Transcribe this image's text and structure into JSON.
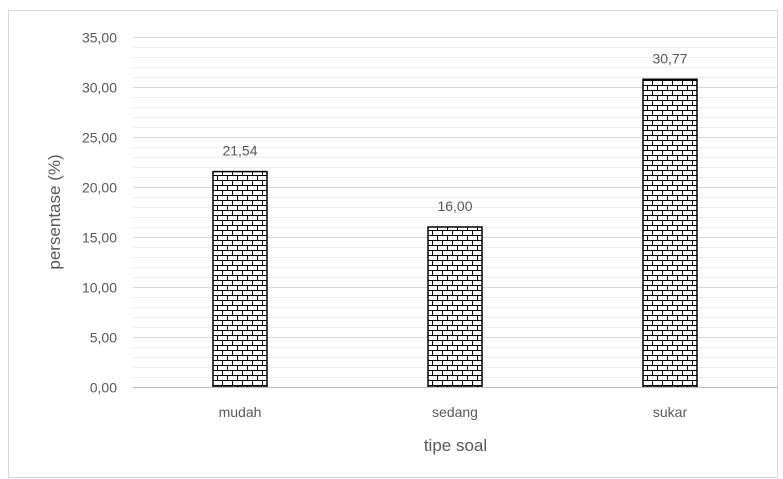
{
  "chart_data": {
    "type": "bar",
    "categories": [
      "mudah",
      "sedang",
      "sukar"
    ],
    "values": [
      21.54,
      16.0,
      30.77
    ],
    "data_labels": [
      "21,54",
      "16,00",
      "30,77"
    ],
    "xlabel": "tipe soal",
    "ylabel": "persentase (%)",
    "ylim": [
      0,
      35
    ],
    "yticks": [
      "0,00",
      "5,00",
      "10,00",
      "15,00",
      "20,00",
      "25,00",
      "30,00",
      "35,00"
    ],
    "grid": true,
    "minor_grid": true,
    "legend": "none",
    "bar_fill": "brick-pattern",
    "colors": {
      "bar_stroke": "#000000",
      "bar_background": "#ffffff",
      "grid_major": "#d9d9d9",
      "grid_minor": "#ececec",
      "text": "#595959"
    }
  }
}
